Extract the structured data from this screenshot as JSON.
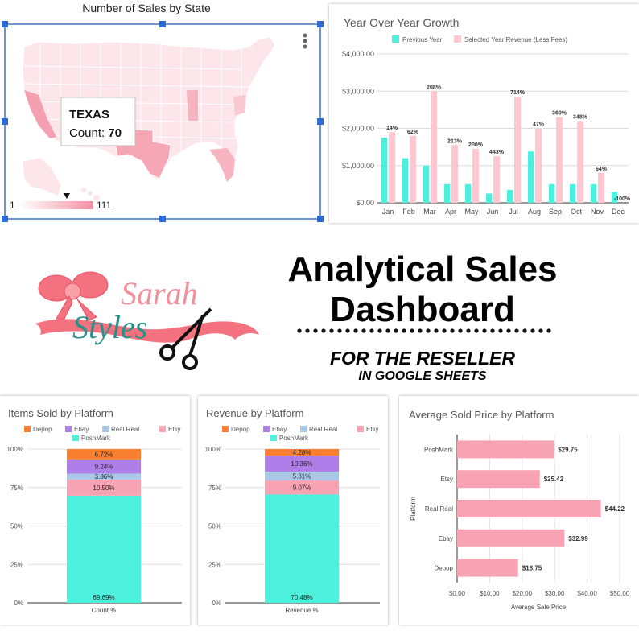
{
  "map": {
    "title": "Number of Sales by State",
    "tooltip_state": "TEXAS",
    "tooltip_count_label": "Count: ",
    "tooltip_count_value": "70",
    "legend_min": "1",
    "legend_max": "111",
    "colors": {
      "low": "#fde5ea",
      "high": "#f48fa3",
      "texas": "#f7a6b5",
      "border": "#3d72c9"
    }
  },
  "branding": {
    "logo_line1": "Sarah",
    "logo_line2": "Styles",
    "title_line1": "Analytical Sales",
    "title_line2": "Dashboard",
    "subtitle1": "FOR THE RESELLER",
    "subtitle2": "IN GOOGLE SHEETS"
  },
  "chart_data": [
    {
      "id": "yoy",
      "type": "bar",
      "title": "Year Over Year Growth",
      "categories": [
        "Jan",
        "Feb",
        "Mar",
        "Apr",
        "May",
        "Jun",
        "Jul",
        "Aug",
        "Sep",
        "Oct",
        "Nov",
        "Dec"
      ],
      "series": [
        {
          "name": "Previous Year",
          "color": "#4df0dc",
          "values": [
            1750,
            1200,
            1000,
            500,
            500,
            250,
            350,
            1380,
            500,
            500,
            500,
            300
          ]
        },
        {
          "name": "Selected Year Revenue (Less Fees)",
          "color": "#ffc7cf",
          "values": [
            1900,
            1800,
            3000,
            1550,
            1450,
            1250,
            2850,
            2000,
            2300,
            2200,
            800,
            0
          ]
        }
      ],
      "data_labels": [
        "14%",
        "62%",
        "208%",
        "213%",
        "200%",
        "443%",
        "714%",
        "47%",
        "360%",
        "348%",
        "64%",
        "-100%"
      ],
      "yticks": [
        "$0.00",
        "$1,000.00",
        "$2,000.00",
        "$3,000.00",
        "$4,000.00"
      ],
      "ylim": [
        0,
        4000
      ],
      "legend": "top"
    },
    {
      "id": "items",
      "type": "bar",
      "title": "Items Sold by Platform",
      "categories": [
        "Count %"
      ],
      "series": [
        {
          "name": "PoshMark",
          "color": "#4df0dc",
          "value": 69.69,
          "label": "69.69%"
        },
        {
          "name": "Etsy",
          "color": "#f7a3b3",
          "value": 10.5,
          "label": "10.50%"
        },
        {
          "name": "Real Real",
          "color": "#a9c8e8",
          "value": 3.86,
          "label": "3.86%"
        },
        {
          "name": "Ebay",
          "color": "#b07ee8",
          "value": 9.24,
          "label": "9.24%"
        },
        {
          "name": "Depop",
          "color": "#f77f2f",
          "value": 6.72,
          "label": "6.72%"
        }
      ],
      "legend_order": [
        "Depop",
        "Ebay",
        "Real Real",
        "Etsy",
        "PoshMark"
      ],
      "yticks": [
        "0%",
        "25%",
        "50%",
        "75%",
        "100%"
      ],
      "ylim": [
        0,
        100
      ],
      "stacked": true
    },
    {
      "id": "revenue",
      "type": "bar",
      "title": "Revenue by Platform",
      "categories": [
        "Revenue %"
      ],
      "series": [
        {
          "name": "PoshMark",
          "color": "#4df0dc",
          "value": 70.48,
          "label": "70.48%"
        },
        {
          "name": "Etsy",
          "color": "#f7a3b3",
          "value": 9.07,
          "label": "9.07%"
        },
        {
          "name": "Real Real",
          "color": "#a9c8e8",
          "value": 5.81,
          "label": "5.81%"
        },
        {
          "name": "Ebay",
          "color": "#b07ee8",
          "value": 10.36,
          "label": "10.36%"
        },
        {
          "name": "Depop",
          "color": "#f77f2f",
          "value": 4.28,
          "label": "4.28%"
        }
      ],
      "legend_order": [
        "Depop",
        "Ebay",
        "Real Real",
        "Etsy",
        "PoshMark"
      ],
      "yticks": [
        "0%",
        "25%",
        "50%",
        "75%",
        "100%"
      ],
      "ylim": [
        0,
        100
      ],
      "stacked": true
    },
    {
      "id": "avg",
      "type": "bar",
      "orientation": "horizontal",
      "title": "Average Sold Price by Platform",
      "categories": [
        "PoshMark",
        "Etsy",
        "Real Real",
        "Ebay",
        "Depop"
      ],
      "values": [
        29.75,
        25.42,
        44.22,
        32.99,
        18.75
      ],
      "data_labels": [
        "$29.75",
        "$25.42",
        "$44.22",
        "$32.99",
        "$18.75"
      ],
      "color": "#f7a3b3",
      "xticks": [
        "$0.00",
        "$10.00",
        "$20.00",
        "$30.00",
        "$40.00",
        "$50.00"
      ],
      "xlim": [
        0,
        50
      ],
      "xlabel": "Average Sale Price",
      "ylabel": "Platform"
    }
  ]
}
